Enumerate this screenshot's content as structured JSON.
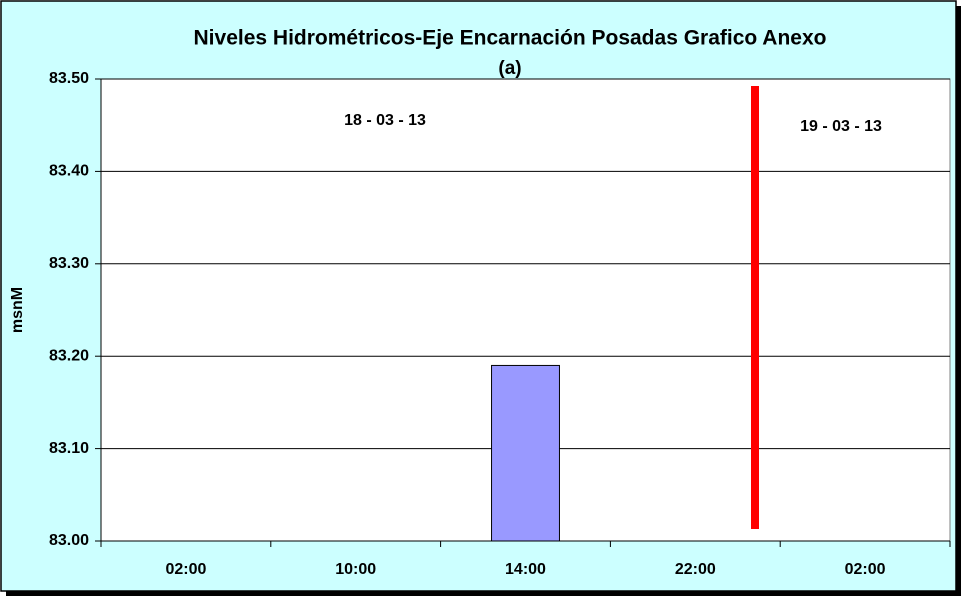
{
  "chart_data": {
    "type": "bar",
    "title": "Niveles Hidrométricos-Eje Encarnación Posadas Grafico Anexo",
    "subtitle": "(a)",
    "y_label": "msnM",
    "categories": [
      "02:00",
      "10:00",
      "14:00",
      "22:00",
      "02:00"
    ],
    "values": [
      null,
      null,
      83.19,
      null,
      null
    ],
    "color": "#9999ff",
    "ylim": [
      83.0,
      83.5
    ],
    "yticks": [
      {
        "value": 83.0,
        "label": "83.00"
      },
      {
        "value": 83.1,
        "label": "83.10"
      },
      {
        "value": 83.2,
        "label": "83.20"
      },
      {
        "value": 83.3,
        "label": "83.30"
      },
      {
        "value": 83.4,
        "label": "83.40"
      },
      {
        "value": 83.5,
        "label": "83.50"
      }
    ],
    "grid": true,
    "annotations": [
      "18 - 03 - 13",
      "19 - 03 - 13"
    ]
  }
}
